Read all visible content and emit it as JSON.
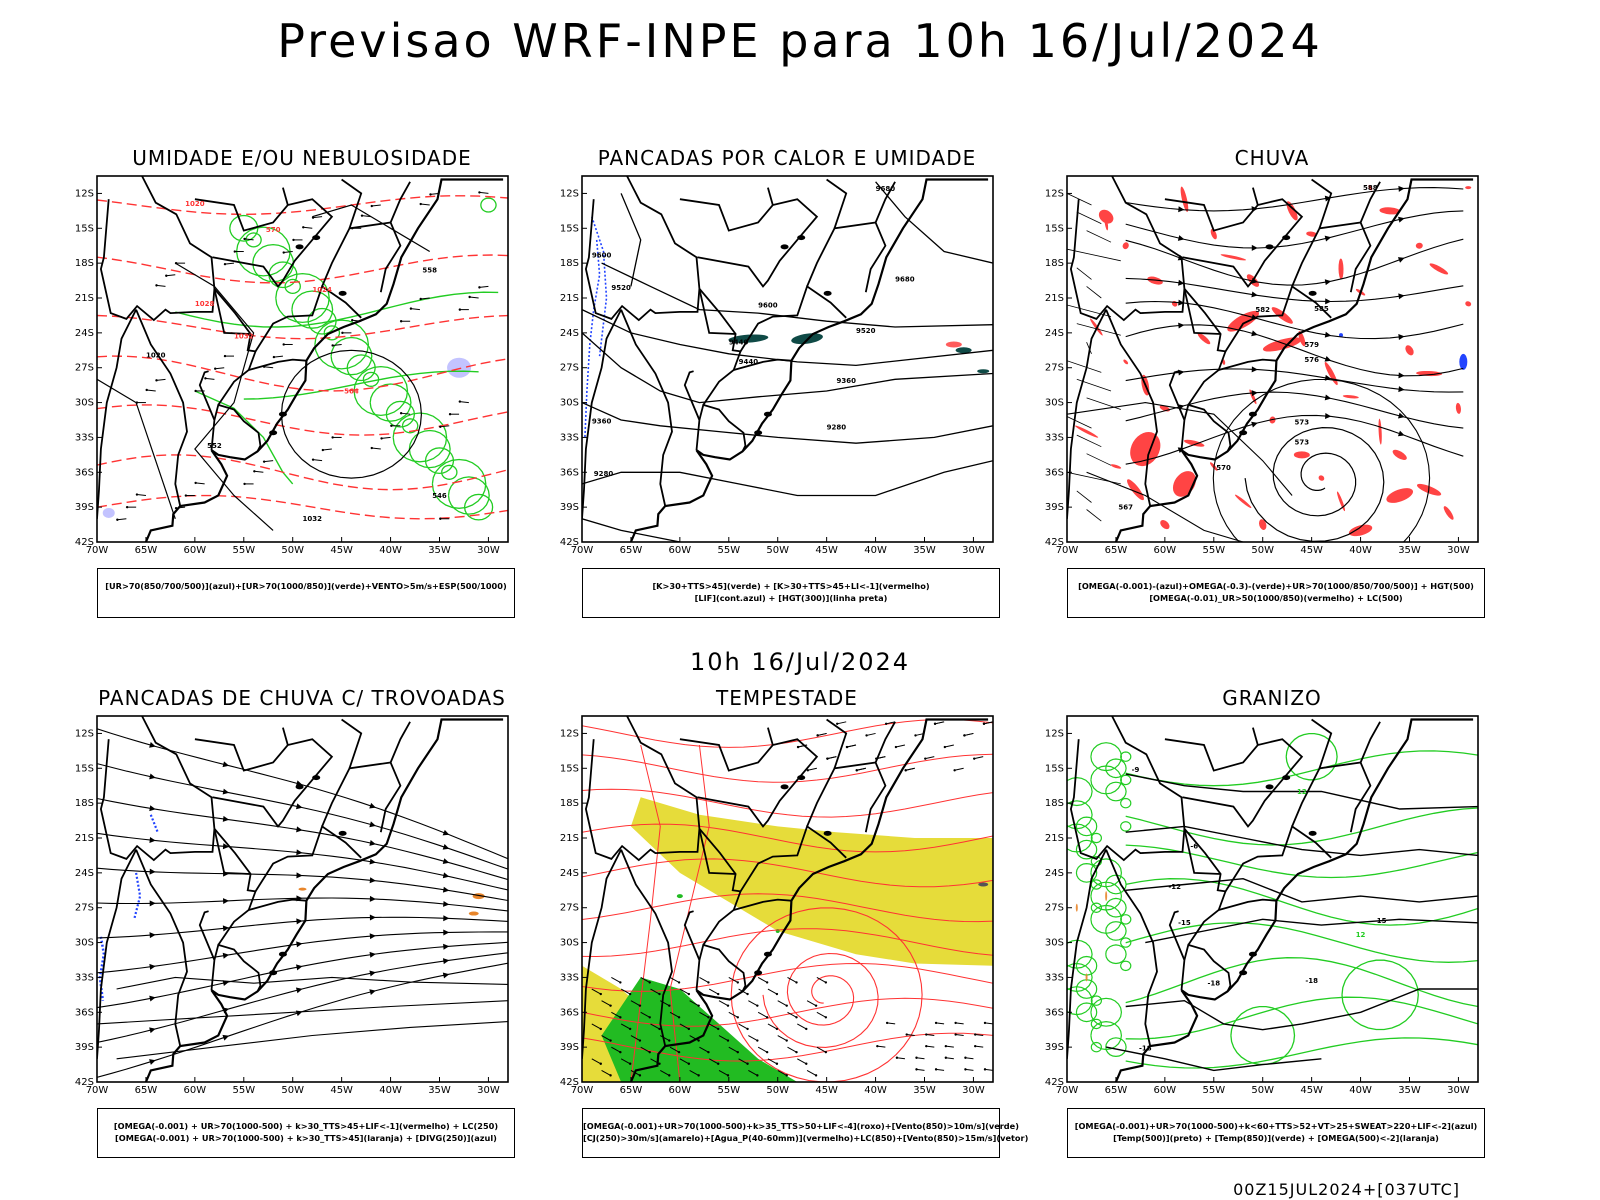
{
  "title": "Previsao WRF-INPE  para 10h 16/Jul/2024",
  "mid_date": "10h 16/Jul/2024",
  "footer": "00Z15JUL2024+[037UTC]",
  "lat_ticks": [
    "12S",
    "15S",
    "18S",
    "21S",
    "24S",
    "27S",
    "30S",
    "33S",
    "36S",
    "39S",
    "42S"
  ],
  "lon_ticks": [
    "70W",
    "65W",
    "60W",
    "55W",
    "50W",
    "45W",
    "40W",
    "35W",
    "30W"
  ],
  "colors": {
    "humid_green": "#22cc22",
    "hgt_red": "#ff3333",
    "rain_red": "#ff4444",
    "blue": "#2244ff",
    "dark_teal": "#0f4a46",
    "yellow": "#e6dc3a",
    "storm_green": "#22bb22",
    "orange": "#e8852a",
    "purple": "#aaaaff"
  },
  "panels": [
    {
      "id": "umidade",
      "title": "UMIDADE E/OU NEBULOSIDADE",
      "legend": [
        "[UR>70(850/700/500)](azul)+[UR>70(1000/850)](verde)+VENTO>5m/s+ESP(500/1000)"
      ],
      "labels": [
        "570",
        "1020",
        "1024",
        "1028",
        "1032",
        "564",
        "558",
        "552",
        "546",
        "1020",
        "1032"
      ]
    },
    {
      "id": "pancadas-calor",
      "title": "PANCADAS POR CALOR E UMIDADE",
      "legend": [
        "[K>30+TTS>45](verde) + [K>30+TTS>45+LI<-1](vermelho)",
        "[LIF](cont.azul) + [HGT(300)](linha preta)"
      ],
      "labels": [
        "9680",
        "9600",
        "9520",
        "9600",
        "9520",
        "9440",
        "9440",
        "9360",
        "9280",
        "9360",
        "9680"
      ]
    },
    {
      "id": "chuva",
      "title": "CHUVA",
      "legend": [
        "[OMEGA(-0.001)-(azul)+OMEGA(-0.3)-(verde)+UR>70(1000/850/700/500)] + HGT(500)",
        "[OMEGA(-0.01)_UR>50(1000/850)(vermelho) + LC(500)"
      ],
      "labels": [
        "588",
        "585",
        "582",
        "579",
        "576",
        "573",
        "570",
        "567",
        "573"
      ]
    },
    {
      "id": "pancadas-trovoadas",
      "title": "PANCADAS DE CHUVA C/ TROVOADAS",
      "legend": [
        "[OMEGA(-0.001) + UR>70(1000-500) + k>30_TTS>45+LIF<-1](vermelho) + LC(250)",
        "[OMEGA(-0.001) + UR>70(1000-500) + k>30_TTS>45](laranja) + [DIVG(250)](azul)"
      ],
      "labels": []
    },
    {
      "id": "tempestade",
      "title": "TEMPESTADE",
      "legend": [
        "[OMEGA(-0.001)+UR>70(1000-500)+k>35_TTS>50+LIF<-4](roxo)+[Vento(850)>10m/s](verde)",
        "[CJ(250)>30m/s](amarelo)+[Agua_P(40-60mm)](vermelho)+LC(850)+[Vento(850)>15m/s](vetor)"
      ],
      "labels": []
    },
    {
      "id": "granizo",
      "title": "GRANIZO",
      "legend": [
        "[OMEGA(-0.001)+UR>70(1000-500)+k<60+TTS>52+VT>25+SWEAT>220+LIF<-2](azul)",
        "[Temp(500)](preto) + [Temp(850)](verde) + [OMEGA(500)<-2](laranja)"
      ],
      "labels": [
        "-9",
        "-6",
        "-12",
        "-15",
        "-18",
        "-15",
        "-18",
        "-18",
        "12",
        "12"
      ]
    }
  ]
}
